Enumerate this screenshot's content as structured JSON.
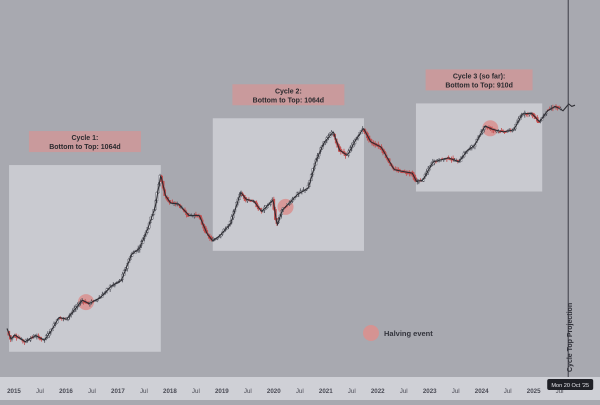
{
  "chart_data": {
    "type": "candlestick",
    "x_axis": {
      "ticks": [
        "2015",
        "Jul",
        "2016",
        "Jul",
        "2017",
        "Jul",
        "2018",
        "Jul",
        "2019",
        "Jul",
        "2020",
        "Jul",
        "2021",
        "Jul",
        "2022",
        "Jul",
        "2023",
        "Jul",
        "2024",
        "Jul",
        "2025",
        "Jul"
      ],
      "range": [
        2015.0,
        2025.95
      ]
    },
    "y_axis": {
      "scale": "log",
      "visible": false
    },
    "grid": false,
    "cycles": [
      {
        "title": "Cycle 1:",
        "subtitle": "Bottom to Top: 1064d",
        "start": 2015.04,
        "end": 2017.96
      },
      {
        "title": "Cycle 2:",
        "subtitle": "Bottom to Top: 1064d",
        "start": 2018.96,
        "end": 2021.87
      },
      {
        "title": "Cycle 3 (so far):",
        "subtitle": "Bottom to Top: 910d",
        "start": 2022.87,
        "end": 2025.3
      }
    ],
    "halvings": [
      2016.52,
      2020.36,
      2024.3
    ],
    "legend": {
      "label": "Halving event",
      "position": "bottom-center"
    },
    "projection": {
      "label": "Cycle Top Projection",
      "date_label": "Mon 20 Oct '25",
      "x": 2025.8
    },
    "series": {
      "anchors": [
        [
          2015.0,
          320
        ],
        [
          2015.08,
          240
        ],
        [
          2015.15,
          270
        ],
        [
          2015.35,
          225
        ],
        [
          2015.55,
          265
        ],
        [
          2015.72,
          235
        ],
        [
          2015.85,
          300
        ],
        [
          2016.0,
          430
        ],
        [
          2016.15,
          410
        ],
        [
          2016.45,
          680
        ],
        [
          2016.58,
          620
        ],
        [
          2016.8,
          730
        ],
        [
          2017.0,
          980
        ],
        [
          2017.2,
          1150
        ],
        [
          2017.4,
          2300
        ],
        [
          2017.55,
          2700
        ],
        [
          2017.7,
          4400
        ],
        [
          2017.85,
          8000
        ],
        [
          2017.96,
          19000
        ],
        [
          2018.05,
          11000
        ],
        [
          2018.15,
          9000
        ],
        [
          2018.3,
          8800
        ],
        [
          2018.5,
          6500
        ],
        [
          2018.7,
          6500
        ],
        [
          2018.85,
          4000
        ],
        [
          2018.96,
          3300
        ],
        [
          2019.1,
          3800
        ],
        [
          2019.3,
          5200
        ],
        [
          2019.5,
          12000
        ],
        [
          2019.6,
          10000
        ],
        [
          2019.75,
          9500
        ],
        [
          2019.9,
          7200
        ],
        [
          2020.05,
          8800
        ],
        [
          2020.12,
          9800
        ],
        [
          2020.2,
          5000
        ],
        [
          2020.3,
          7500
        ],
        [
          2020.45,
          9200
        ],
        [
          2020.6,
          11500
        ],
        [
          2020.8,
          13500
        ],
        [
          2020.95,
          28000
        ],
        [
          2021.1,
          45000
        ],
        [
          2021.28,
          60000
        ],
        [
          2021.4,
          37000
        ],
        [
          2021.55,
          32000
        ],
        [
          2021.7,
          47000
        ],
        [
          2021.86,
          66000
        ],
        [
          2022.0,
          46000
        ],
        [
          2022.2,
          40000
        ],
        [
          2022.45,
          22000
        ],
        [
          2022.6,
          21000
        ],
        [
          2022.8,
          20000
        ],
        [
          2022.88,
          16000
        ],
        [
          2023.0,
          16500
        ],
        [
          2023.2,
          27000
        ],
        [
          2023.5,
          30000
        ],
        [
          2023.7,
          27000
        ],
        [
          2023.85,
          36000
        ],
        [
          2024.0,
          42000
        ],
        [
          2024.2,
          70000
        ],
        [
          2024.35,
          64000
        ],
        [
          2024.55,
          60000
        ],
        [
          2024.75,
          63000
        ],
        [
          2024.92,
          97000
        ],
        [
          2025.1,
          98000
        ],
        [
          2025.25,
          78000
        ],
        [
          2025.4,
          105000
        ],
        [
          2025.55,
          118000
        ],
        [
          2025.65,
          110000
        ]
      ],
      "projection_anchors": [
        [
          2025.65,
          110000
        ],
        [
          2025.7,
          105000
        ],
        [
          2025.76,
          116000
        ],
        [
          2025.81,
          126000
        ],
        [
          2025.87,
          118000
        ],
        [
          2025.93,
          122000
        ]
      ]
    }
  },
  "colors": {
    "background": "#a8a9b0",
    "box_fill": "#cfd0d6",
    "label_bg": "#c99a9c",
    "label_text": "#2a2a2e",
    "line": "#2d2d33",
    "up": "#e5e6ea",
    "down": "#c44c4c",
    "halving": "#d9908f",
    "axis_bg": "#cfd0d6",
    "axis_text": "#4a4b55",
    "date_badge": "#1f2026"
  }
}
